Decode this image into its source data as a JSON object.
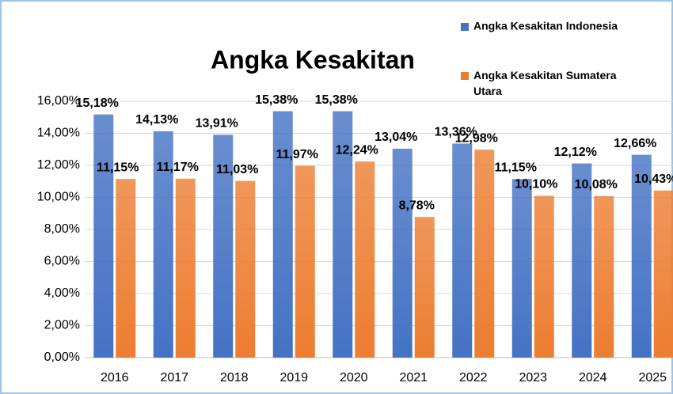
{
  "chart_data": {
    "type": "bar",
    "title": "Angka Kesakitan",
    "categories": [
      "2016",
      "2017",
      "2018",
      "2019",
      "2020",
      "2021",
      "2022",
      "2023",
      "2024",
      "2025"
    ],
    "series": [
      {
        "name": "Angka Kesakitan Indonesia",
        "color": "#4472c4",
        "values": [
          15.18,
          14.13,
          13.91,
          15.38,
          15.38,
          13.04,
          13.36,
          11.15,
          12.12,
          12.66
        ],
        "value_labels": [
          "15,18%",
          "14,13%",
          "13,91%",
          "15,38%",
          "15,38%",
          "13,04%",
          "13,36%",
          "11,15%",
          "12,12%",
          "12,66%"
        ]
      },
      {
        "name": "Angka Kesakitan Sumatera Utara",
        "color": "#ed7d31",
        "values": [
          11.15,
          11.17,
          11.03,
          11.97,
          12.24,
          8.78,
          12.98,
          10.1,
          10.08,
          10.43
        ],
        "value_labels": [
          "11,15%",
          "11,17%",
          "11,03%",
          "11,97%",
          "12,24%",
          "8,78%",
          "12,98%",
          "10,10%",
          "10,08%",
          "10,43%"
        ]
      }
    ],
    "ylim": [
      0,
      16
    ],
    "yticks": [
      {
        "value": 0,
        "label": "0,00%"
      },
      {
        "value": 2,
        "label": "2,00%"
      },
      {
        "value": 4,
        "label": "4,00%"
      },
      {
        "value": 6,
        "label": "6,00%"
      },
      {
        "value": 8,
        "label": "8,00%"
      },
      {
        "value": 10,
        "label": "10,00%"
      },
      {
        "value": 12,
        "label": "12,00%"
      },
      {
        "value": 14,
        "label": "14,00%"
      },
      {
        "value": 16,
        "label": "16,00%"
      }
    ],
    "grid": true,
    "legend": "top right"
  }
}
